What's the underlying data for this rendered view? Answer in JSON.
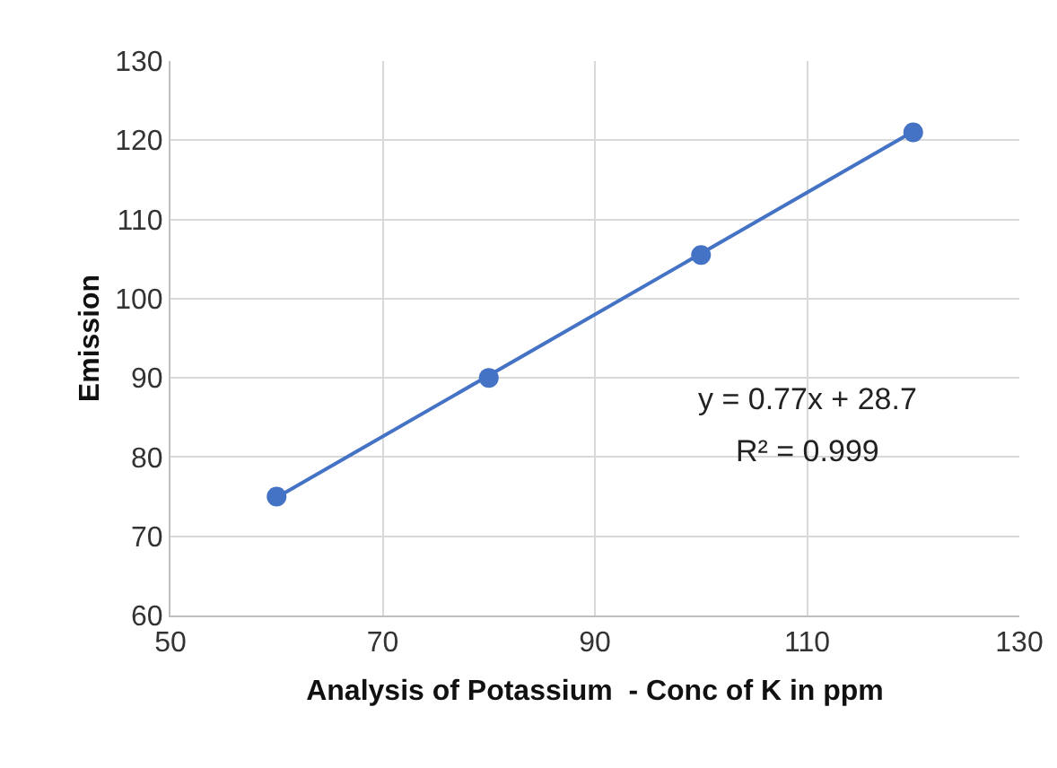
{
  "chart_data": {
    "type": "scatter",
    "xlabel": "Analysis of Potassium  - Conc of K in ppm",
    "ylabel": "Emission",
    "x": [
      60,
      80,
      100,
      120
    ],
    "series": [
      {
        "color": "#4472c4",
        "values": [
          75,
          90,
          105.5,
          121
        ],
        "marker": "circle"
      },
      {
        "type": "line",
        "color": "#4472c4",
        "x": [
          60,
          120
        ],
        "values": [
          74.9,
          121.1
        ],
        "marker": "none",
        "line_style": "solid"
      }
    ],
    "xlim": [
      50,
      130
    ],
    "xticks": [
      50,
      70,
      90,
      110,
      130
    ],
    "ylim": [
      60,
      130
    ],
    "yticks": [
      60,
      70,
      80,
      90,
      100,
      110,
      120,
      130
    ],
    "grid": true,
    "annotations": [
      "y = 0.77x + 28.7",
      "R² = 0.999"
    ]
  }
}
